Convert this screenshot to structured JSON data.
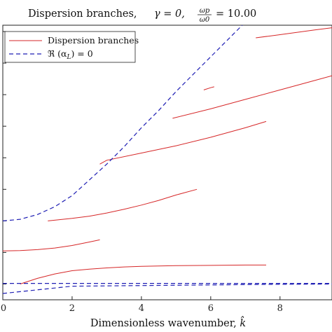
{
  "chart_data": {
    "type": "line",
    "title": "Dispersion branches, γ = 0, ωp/ω0 = 10.00",
    "title_parts": {
      "lead": "Dispersion branches, ",
      "gamma": "γ = 0,",
      "frac_num": "ωp",
      "frac_den": "ω0",
      "tail": "= 10.00"
    },
    "xlabel": "Dimensionless wavenumber, k̂",
    "xlabel_parts": {
      "text": "Dimensionless wavenumber, ",
      "symbol": "k̂"
    },
    "ylabel": "",
    "xlim": [
      0,
      9.5
    ],
    "ylim": [
      -0.5,
      8.2
    ],
    "x_ticks": [
      0,
      2,
      4,
      6,
      8
    ],
    "x_tick_labels": [
      "0",
      "2",
      "4",
      "6",
      "8"
    ],
    "y_ticks": [
      0,
      1,
      2,
      3,
      4,
      5,
      6,
      7,
      8
    ],
    "grid": false,
    "legend": {
      "placement": "top-left",
      "entries": [
        {
          "label": "Dispersion branches",
          "style": "solid",
          "color": "#d62728"
        },
        {
          "label": "ℜ (α_L) = 0",
          "style": "dashed",
          "color": "#1f1fb4"
        }
      ],
      "label_parts": {
        "re": "ℜ (α",
        "sub": "L",
        "tail": ") = 0"
      }
    },
    "series": [
      {
        "name": "Dispersion branches",
        "style": "solid",
        "color": "#d62728",
        "branches": [
          {
            "x": [
              0.5,
              1.0,
              1.5,
              2.0,
              2.5,
              3.0,
              3.5,
              4.0,
              5.0,
              6.0,
              7.0,
              7.6
            ],
            "y": [
              0.0,
              0.18,
              0.32,
              0.42,
              0.47,
              0.51,
              0.54,
              0.56,
              0.58,
              0.59,
              0.6,
              0.6
            ]
          },
          {
            "x": [
              0.0,
              0.5,
              1.0,
              1.5,
              2.0,
              2.5,
              2.8
            ],
            "y": [
              1.05,
              1.06,
              1.09,
              1.14,
              1.22,
              1.33,
              1.4
            ]
          },
          {
            "x": [
              1.3,
              2.0,
              2.5,
              3.0,
              3.5,
              4.0,
              4.5,
              5.0,
              5.6
            ],
            "y": [
              2.0,
              2.08,
              2.15,
              2.25,
              2.37,
              2.5,
              2.65,
              2.82,
              3.0
            ]
          },
          {
            "x": [
              2.8,
              3.0,
              4.0,
              5.0,
              6.0,
              7.0,
              7.6
            ],
            "y": [
              3.8,
              3.92,
              4.15,
              4.38,
              4.65,
              4.95,
              5.15
            ]
          },
          {
            "x": [
              4.9,
              6.0,
              7.0,
              8.0,
              9.0,
              9.5
            ],
            "y": [
              5.25,
              5.55,
              5.85,
              6.15,
              6.45,
              6.6
            ]
          },
          {
            "x": [
              5.8,
              6.0,
              6.1
            ],
            "y": [
              6.15,
              6.22,
              6.25
            ]
          },
          {
            "x": [
              7.3,
              8.0,
              9.0,
              9.5
            ],
            "y": [
              7.8,
              7.9,
              8.05,
              8.12
            ]
          }
        ]
      },
      {
        "name": "ℜ (α_L) = 0",
        "style": "dashed",
        "color": "#1f1fb4",
        "branches": [
          {
            "x": [
              0.0,
              0.5,
              1.0,
              1.5,
              2.0,
              2.5,
              3.0,
              3.5,
              4.0,
              4.5,
              5.0,
              5.5,
              6.0,
              6.5,
              7.0,
              7.5
            ],
            "y": [
              2.0,
              2.05,
              2.2,
              2.45,
              2.8,
              3.3,
              3.8,
              4.35,
              4.95,
              5.5,
              6.1,
              6.65,
              7.2,
              7.75,
              8.3,
              8.85
            ]
          },
          {
            "x": [
              0.0,
              2.0,
              4.0,
              6.0,
              8.0,
              9.5
            ],
            "y": [
              -0.3,
              -0.07,
              -0.05,
              -0.03,
              -0.01,
              0.0
            ]
          },
          {
            "x": [
              0.0,
              9.5
            ],
            "y": [
              0.02,
              0.02
            ]
          }
        ]
      }
    ]
  }
}
